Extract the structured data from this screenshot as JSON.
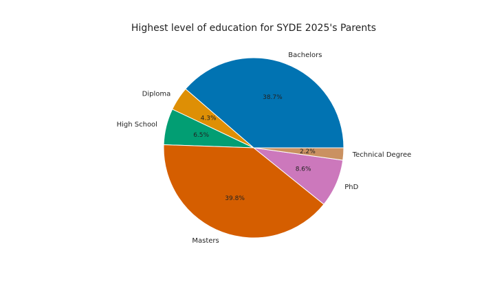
{
  "chart_data": {
    "type": "pie",
    "title": "Highest level of education for SYDE 2025's Parents",
    "start_angle_deg": 0,
    "direction": "counterclockwise",
    "slices": [
      {
        "label": "Bachelors",
        "value": 38.7,
        "pct_label": "38.7%",
        "color": "#0173b2"
      },
      {
        "label": "Diploma",
        "value": 4.3,
        "pct_label": "4.3%",
        "color": "#de8f05"
      },
      {
        "label": "High School",
        "value": 6.5,
        "pct_label": "6.5%",
        "color": "#029e73"
      },
      {
        "label": "Masters",
        "value": 39.8,
        "pct_label": "39.8%",
        "color": "#d55e00"
      },
      {
        "label": "PhD",
        "value": 8.6,
        "pct_label": "8.6%",
        "color": "#cc78bc"
      },
      {
        "label": "Technical Degree",
        "value": 2.2,
        "pct_label": "2.2%",
        "color": "#ca9161"
      }
    ]
  }
}
